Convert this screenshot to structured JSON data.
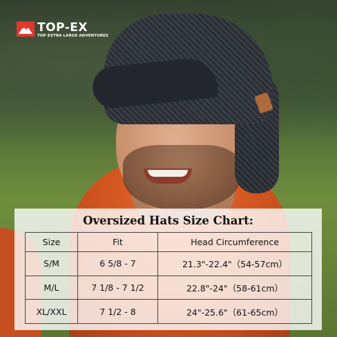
{
  "brand": {
    "name": "TOP-EX",
    "tagline": "TOP EXTRA LARGE ADVENTURES",
    "accent": "#e2382e"
  },
  "size_chart": {
    "title": "Oversized Hats Size Chart:",
    "columns": [
      "Size",
      "Fit",
      "Head Circumference"
    ],
    "rows": [
      {
        "size": "S/M",
        "fit": "6 5/8  - 7",
        "circumference": "21.3\"-22.4\"（54-57cm）"
      },
      {
        "size": "M/L",
        "fit": "7 1/8  - 7 1/2",
        "circumference": "22.8\"-24\"（58-61cm）"
      },
      {
        "size": "XL/XXL",
        "fit": "7 1/2 - 8",
        "circumference": "24\"-25.6\"（61-65cm）"
      }
    ]
  }
}
